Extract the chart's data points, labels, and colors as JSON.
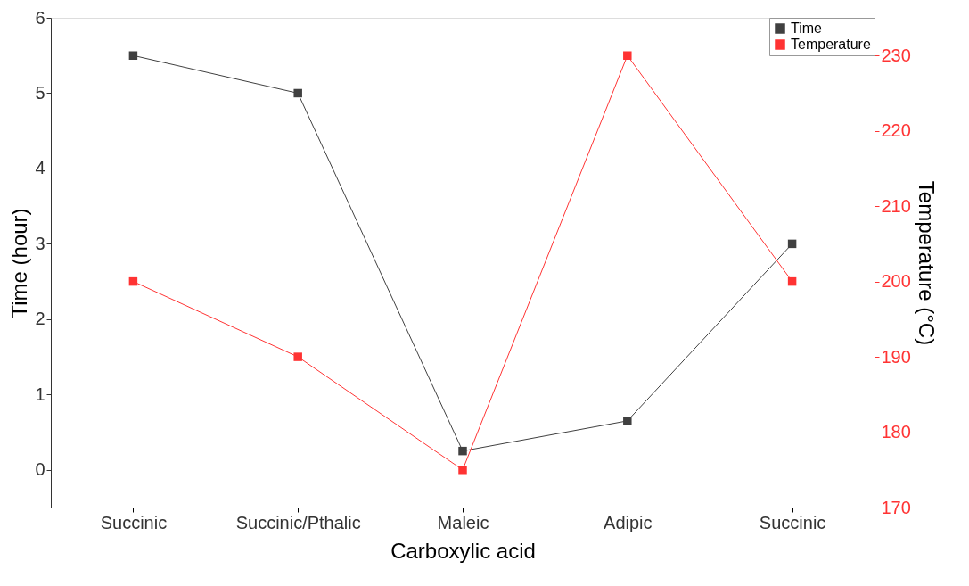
{
  "chart_data": {
    "type": "line",
    "xlabel": "Carboxylic acid",
    "ylabel": "Time (hour)",
    "y2label": "Temperature (°C)",
    "categories": [
      "Succinic",
      "Succinic/Pthalic",
      "Maleic",
      "Adipic",
      "Succinic"
    ],
    "series": [
      {
        "name": "Time",
        "color": "#404040",
        "values": [
          5.5,
          5.0,
          0.25,
          0.65,
          3.0
        ]
      },
      {
        "name": "Temperature",
        "color": "#ff3333",
        "values": [
          200,
          190,
          175,
          230,
          200
        ],
        "axis": "y2"
      }
    ],
    "ylim": [
      -0.5,
      6
    ],
    "yticks": [
      0,
      1,
      2,
      3,
      4,
      5,
      6
    ],
    "y2lim": [
      170,
      235
    ],
    "y2ticks": [
      170,
      180,
      190,
      200,
      210,
      220,
      230
    ],
    "marker": "square",
    "line_style": "solid",
    "grid": false,
    "legend": "top right"
  }
}
